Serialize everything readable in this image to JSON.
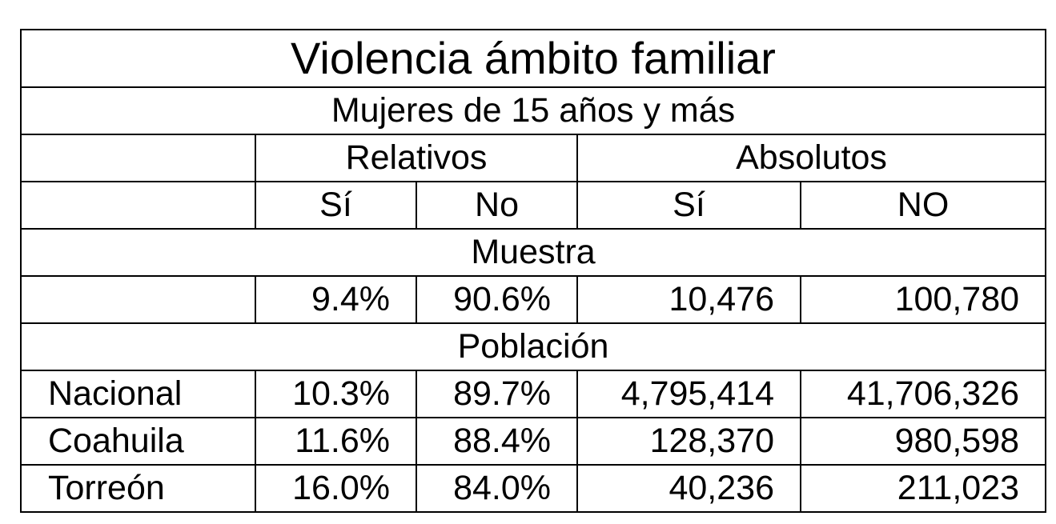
{
  "title": "Violencia ámbito familiar",
  "subtitle": "Mujeres de 15 años y más",
  "groups": {
    "relativos": "Relativos",
    "absolutos": "Absolutos"
  },
  "columns": [
    "Sí",
    "No",
    "Sí",
    "NO"
  ],
  "sections": {
    "muestra": {
      "label": "Muestra",
      "rows": [
        {
          "name": "",
          "rel_si": "9.4%",
          "rel_no": "90.6%",
          "abs_si": "10,476",
          "abs_no": "100,780"
        }
      ]
    },
    "poblacion": {
      "label": "Población",
      "rows": [
        {
          "name": "Nacional",
          "rel_si": "10.3%",
          "rel_no": "89.7%",
          "abs_si": "4,795,414",
          "abs_no": "41,706,326"
        },
        {
          "name": "Coahuila",
          "rel_si": "11.6%",
          "rel_no": "88.4%",
          "abs_si": "128,370",
          "abs_no": "980,598"
        },
        {
          "name": "Torreón",
          "rel_si": "16.0%",
          "rel_no": "84.0%",
          "abs_si": "40,236",
          "abs_no": "211,023"
        }
      ]
    }
  }
}
